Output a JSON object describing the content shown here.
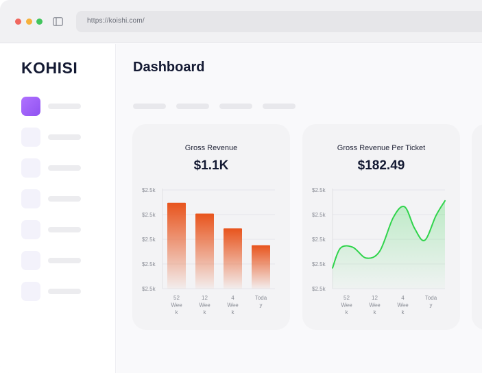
{
  "browser": {
    "url": "https://koishi.com/"
  },
  "sidebar": {
    "logo": "KOHISI",
    "items": [
      {
        "active": true
      },
      {
        "active": false
      },
      {
        "active": false
      },
      {
        "active": false
      },
      {
        "active": false
      },
      {
        "active": false
      },
      {
        "active": false
      }
    ]
  },
  "main": {
    "title": "Dashboard"
  },
  "colors": {
    "accent": "#9b5cf6",
    "bar": "#e8541d",
    "line": "#2fd44b"
  },
  "cards": [
    {
      "title": "Gross Revenue",
      "value": "$1.1K"
    },
    {
      "title": "Gross Revenue Per Ticket",
      "value": "$182.49"
    }
  ],
  "chart_data": [
    {
      "type": "bar",
      "title": "Gross Revenue",
      "y_tick_labels": [
        "$2.5k",
        "$2.5k",
        "$2.5k",
        "$2.5k",
        "$2.5k"
      ],
      "categories": [
        [
          "52",
          "Wee",
          "k"
        ],
        [
          "12",
          "Wee",
          "k"
        ],
        [
          "4",
          "Wee",
          "k"
        ],
        [
          "Toda",
          "y"
        ]
      ],
      "values": [
        0.87,
        0.76,
        0.61,
        0.44
      ],
      "ylim": [
        0,
        1
      ],
      "grid": true,
      "color": "#e8541d"
    },
    {
      "type": "area",
      "title": "Gross Revenue Per Ticket",
      "y_tick_labels": [
        "$2.5k",
        "$2.5k",
        "$2.5k",
        "$2.5k",
        "$2.5k"
      ],
      "categories": [
        [
          "52",
          "Wee",
          "k"
        ],
        [
          "12",
          "Wee",
          "k"
        ],
        [
          "4",
          "Wee",
          "k"
        ],
        [
          "Toda",
          "y"
        ]
      ],
      "x": [
        0,
        0.07,
        0.18,
        0.3,
        0.42,
        0.54,
        0.64,
        0.73,
        0.82,
        0.92,
        1.0
      ],
      "values": [
        0.21,
        0.41,
        0.42,
        0.31,
        0.38,
        0.72,
        0.83,
        0.61,
        0.49,
        0.74,
        0.89
      ],
      "ylim": [
        0,
        1
      ],
      "grid": true,
      "color": "#2fd44b"
    }
  ]
}
